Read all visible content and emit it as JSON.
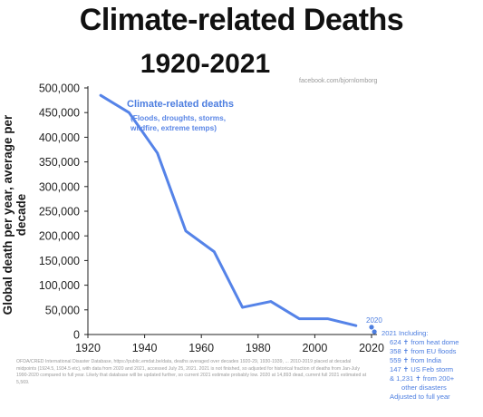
{
  "title_line1": "Climate-related Deaths",
  "title_line2": "1920-2021",
  "credit": "facebook.com/bjornlomborg",
  "chart_data": {
    "type": "line",
    "title": "Climate-related Deaths 1920-2021",
    "ylabel": "Global death per year, average per decade",
    "xlim": [
      1920,
      2020
    ],
    "ylim": [
      0,
      500000
    ],
    "x_ticks": [
      1920,
      1940,
      1960,
      1980,
      2000,
      2020
    ],
    "y_ticks": [
      0,
      50000,
      100000,
      150000,
      200000,
      250000,
      300000,
      350000,
      400000,
      450000,
      500000
    ],
    "y_tick_labels": [
      "0",
      "50,000",
      "100,000",
      "150,000",
      "200,000",
      "250,000",
      "300,000",
      "350,000",
      "400,000",
      "450,000",
      "500,000"
    ],
    "grid": false,
    "series": [
      {
        "name": "Climate-related deaths",
        "subtitle": "(Floods, droughts, storms, wildfire, extreme temps)",
        "color": "#5583e8",
        "x": [
          1924.5,
          1934.5,
          1944.5,
          1954.5,
          1964.5,
          1974.5,
          1984.5,
          1994.5,
          2004.5,
          2014.5
        ],
        "y": [
          485000,
          450000,
          368000,
          210000,
          168000,
          55000,
          67000,
          32000,
          32000,
          18000
        ]
      }
    ],
    "points": [
      {
        "label": "2020",
        "x": 2020,
        "y": 14893
      },
      {
        "label": "2021",
        "x": 2021,
        "y": 5569
      }
    ]
  },
  "annotation_2020": "2020",
  "breakdown_lines": [
    "2021 Including:",
    "624 ✝ from heat dome",
    "358 ✝ from EU floods",
    "559 ✝ from India",
    "147 ✝ US Feb storm",
    "& 1,231 ✝ from 200+",
    "other disasters",
    "Adjusted to full year"
  ],
  "source_text": "OFDA/CRED International Disaster Database, https://public.emdat.be/data, deaths averaged over decades 1920-29, 1930-1939, ... 2010-2019 placed at decadal midpoints (1924.5, 1934.5 etc), with data from 2020 and 2021, accessed July 25, 2021. 2021 is not finished, so adjusted for historical fraction of deaths from Jan-July 1990-2020 compared to full year. Likely that database will be updated further, so current 2021 estimate probably low. 2020 at 14,893 dead, current full 2021 estimated at 5,569."
}
